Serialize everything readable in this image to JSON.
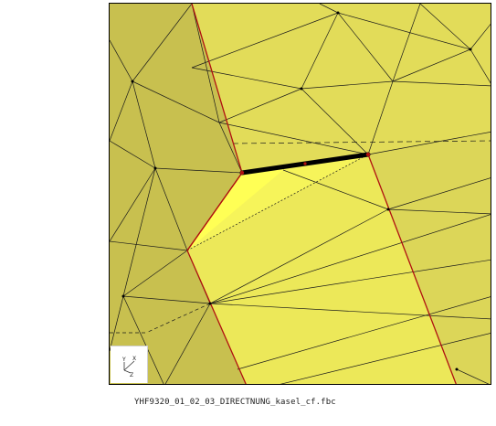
{
  "viewer": {
    "filename": "YHF9320_01_02_03_DIRECTNUNG_kasel_cf.fbc",
    "axis_labels": {
      "x": "X",
      "y": "Y",
      "z": "Z"
    }
  },
  "colors": {
    "background": "#ffffff",
    "face_main": "#e2dc59",
    "face_shaded": "#c8c04f",
    "face_highlight": "#f2f056",
    "face_bright": "#ffff55",
    "edge_feature": "#b01010",
    "edge_mesh": "#000000",
    "edge_selected": "#000000"
  }
}
